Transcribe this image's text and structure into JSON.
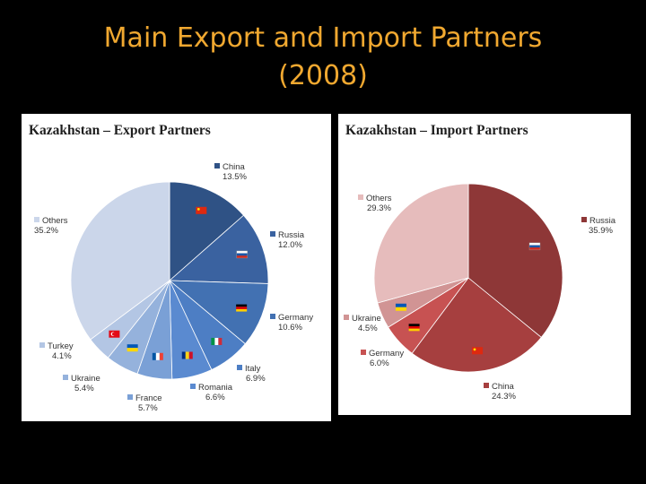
{
  "slide": {
    "title_line1": "Main Export and Import Partners",
    "title_line2": "(2008)"
  },
  "colors": {
    "background": "#000000",
    "title": "#f0a830"
  },
  "chart_data": [
    {
      "type": "pie",
      "title": "Kazakhstan – Export Partners",
      "slices": [
        {
          "label": "China",
          "value_label": "13.5%",
          "value": 13.5,
          "color": "#2f5285",
          "icon": "china-flag-icon"
        },
        {
          "label": "Russia",
          "value_label": "12.0%",
          "value": 12.0,
          "color": "#3a62a0",
          "icon": "russia-flag-icon"
        },
        {
          "label": "Germany",
          "value_label": "10.6%",
          "value": 10.6,
          "color": "#4271b2",
          "icon": "germany-flag-icon"
        },
        {
          "label": "Italy",
          "value_label": "6.9%",
          "value": 6.9,
          "color": "#4d7ec4",
          "icon": "italy-flag-icon"
        },
        {
          "label": "Romania",
          "value_label": "6.6%",
          "value": 6.6,
          "color": "#5a8ad0",
          "icon": "romania-flag-icon"
        },
        {
          "label": "France",
          "value_label": "5.7%",
          "value": 5.7,
          "color": "#7aa0d6",
          "icon": "france-flag-icon"
        },
        {
          "label": "Ukraine",
          "value_label": "5.4%",
          "value": 5.4,
          "color": "#95b2dc",
          "icon": "ukraine-flag-icon"
        },
        {
          "label": "Turkey",
          "value_label": "4.1%",
          "value": 4.1,
          "color": "#b3c6e4",
          "icon": "turkey-flag-icon"
        },
        {
          "label": "Others",
          "value_label": "35.2%",
          "value": 35.2,
          "color": "#cbd6ea",
          "icon": ""
        }
      ]
    },
    {
      "type": "pie",
      "title": "Kazakhstan – Import Partners",
      "slices": [
        {
          "label": "Russia",
          "value_label": "35.9%",
          "value": 35.9,
          "color": "#8e3737",
          "icon": "russia-flag-icon"
        },
        {
          "label": "China",
          "value_label": "24.3%",
          "value": 24.3,
          "color": "#a63f3f",
          "icon": "china-flag-icon"
        },
        {
          "label": "Germany",
          "value_label": "6.0%",
          "value": 6.0,
          "color": "#c75252",
          "icon": "germany-flag-icon"
        },
        {
          "label": "Ukraine",
          "value_label": "4.5%",
          "value": 4.5,
          "color": "#d19494",
          "icon": "ukraine-flag-icon"
        },
        {
          "label": "Others",
          "value_label": "29.3%",
          "value": 29.3,
          "color": "#e6bcbc",
          "icon": ""
        }
      ]
    }
  ]
}
